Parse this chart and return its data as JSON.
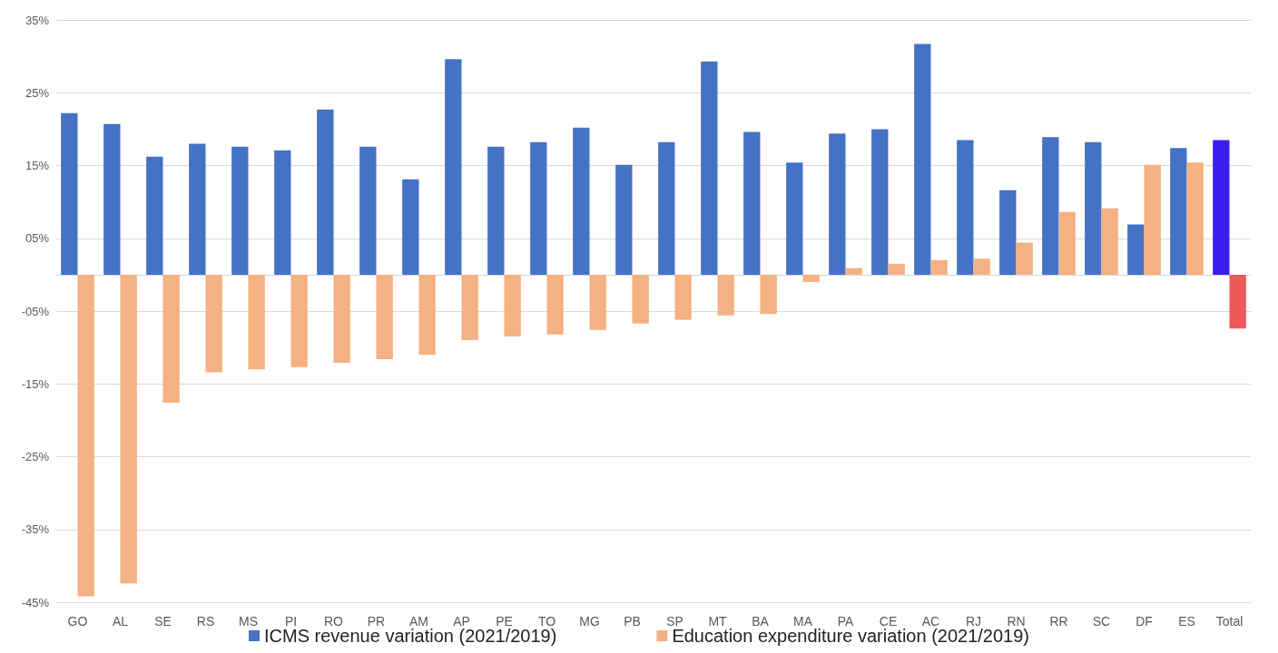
{
  "chart_data": {
    "type": "bar",
    "categories": [
      "GO",
      "AL",
      "SE",
      "RS",
      "MS",
      "PI",
      "RO",
      "PR",
      "AM",
      "AP",
      "PE",
      "TO",
      "MG",
      "PB",
      "SP",
      "MT",
      "BA",
      "MA",
      "PA",
      "CE",
      "AC",
      "RJ",
      "RN",
      "RR",
      "SC",
      "DF",
      "ES",
      "Total"
    ],
    "series": [
      {
        "name": "ICMS revenue variation (2021/2019)",
        "color": "#4472c4",
        "colors": [
          "#4472c4",
          "#4472c4",
          "#4472c4",
          "#4472c4",
          "#4472c4",
          "#4472c4",
          "#4472c4",
          "#4472c4",
          "#4472c4",
          "#4472c4",
          "#4472c4",
          "#4472c4",
          "#4472c4",
          "#4472c4",
          "#4472c4",
          "#4472c4",
          "#4472c4",
          "#4472c4",
          "#4472c4",
          "#4472c4",
          "#4472c4",
          "#4472c4",
          "#4472c4",
          "#4472c4",
          "#4472c4",
          "#4472c4",
          "#4472c4",
          "#3a1ff0"
        ],
        "values": [
          22.2,
          20.7,
          16.2,
          18.0,
          17.6,
          17.1,
          22.7,
          17.6,
          13.1,
          29.6,
          17.6,
          18.2,
          20.2,
          15.1,
          18.2,
          29.3,
          19.6,
          15.4,
          19.4,
          20.0,
          31.7,
          18.5,
          11.6,
          18.9,
          18.2,
          6.9,
          17.4,
          18.5
        ]
      },
      {
        "name": "Education expenditure variation (2021/2019)",
        "color": "#f4b183",
        "colors": [
          "#f4b183",
          "#f4b183",
          "#f4b183",
          "#f4b183",
          "#f4b183",
          "#f4b183",
          "#f4b183",
          "#f4b183",
          "#f4b183",
          "#f4b183",
          "#f4b183",
          "#f4b183",
          "#f4b183",
          "#f4b183",
          "#f4b183",
          "#f4b183",
          "#f4b183",
          "#f4b183",
          "#f4b183",
          "#f4b183",
          "#f4b183",
          "#f4b183",
          "#f4b183",
          "#f4b183",
          "#f4b183",
          "#f4b183",
          "#f4b183",
          "#ee5a5a"
        ],
        "values": [
          -44.2,
          -42.4,
          -17.6,
          -13.4,
          -13.0,
          -12.7,
          -12.1,
          -11.6,
          -11.0,
          -9.0,
          -8.5,
          -8.2,
          -7.6,
          -6.7,
          -6.2,
          -5.6,
          -5.4,
          -1.0,
          0.9,
          1.5,
          2.0,
          2.2,
          4.4,
          8.6,
          9.1,
          15.1,
          15.4,
          -7.4
        ]
      }
    ],
    "ylim": [
      -45,
      35
    ],
    "yticks": [
      {
        "value": -45,
        "label": "-45%"
      },
      {
        "value": -35,
        "label": "-35%"
      },
      {
        "value": -25,
        "label": "-25%"
      },
      {
        "value": -15,
        "label": "-15%"
      },
      {
        "value": -5,
        "label": "-05%"
      },
      {
        "value": 5,
        "label": "05%"
      },
      {
        "value": 15,
        "label": "15%"
      },
      {
        "value": 25,
        "label": "25%"
      },
      {
        "value": 35,
        "label": "35%"
      }
    ],
    "grid": "y",
    "legend": "bottom"
  }
}
